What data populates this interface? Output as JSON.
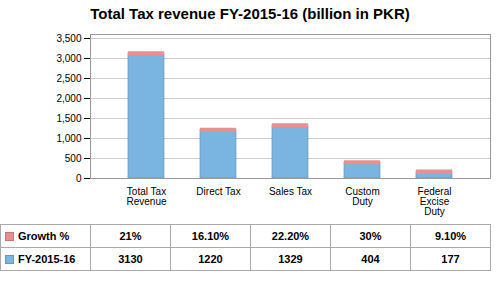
{
  "chart_data": {
    "type": "bar",
    "title": "Total Tax revenue FY-2015-16 (billion in PKR)",
    "categories": [
      "Total Tax\nRevenue",
      "Direct Tax",
      "Sales Tax",
      "Custom\nDuty",
      "Federal\nExcise\nDuty"
    ],
    "series": [
      {
        "name": "FY-2015-16",
        "color": "#7ab4e0",
        "values": [
          3130,
          1220,
          1329,
          404,
          177
        ]
      },
      {
        "name": "Growth %",
        "color": "#e89090",
        "values": [
          21,
          16.1,
          22.2,
          30,
          9.1
        ],
        "value_labels": [
          "21%",
          "16.10%",
          "22.20%",
          "30%",
          "9.10%"
        ]
      }
    ],
    "ylim": [
      0,
      3600
    ],
    "yticks": [
      0,
      500,
      1000,
      1500,
      2000,
      2500,
      3000,
      3500
    ],
    "grid": true,
    "data_labels": true
  }
}
